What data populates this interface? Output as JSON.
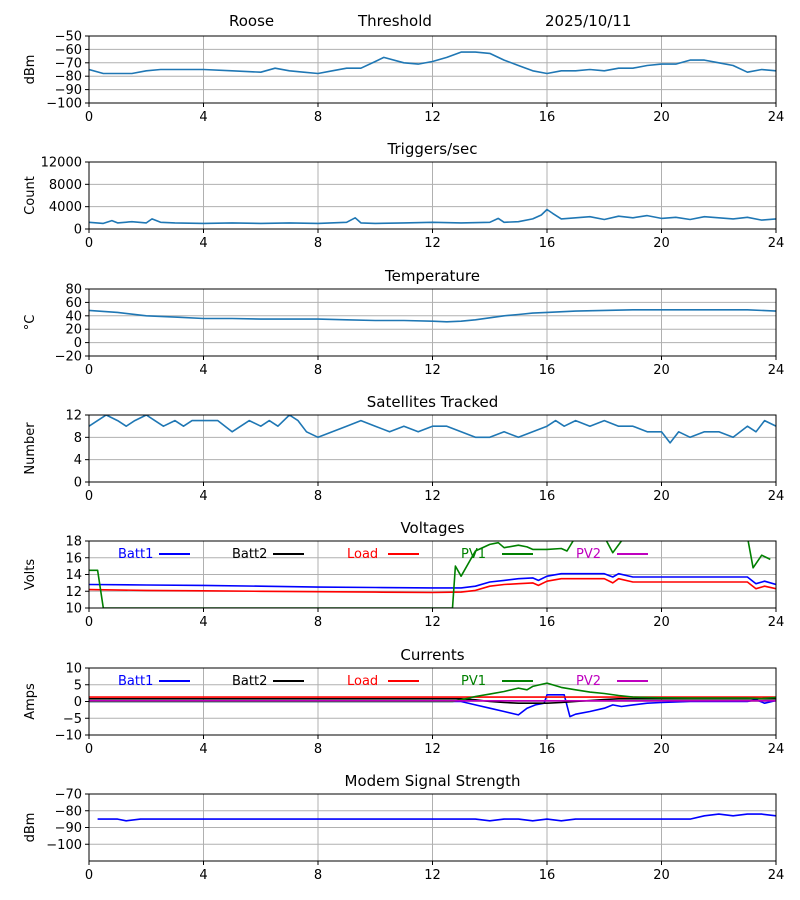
{
  "header": {
    "station": "Roose",
    "mode": "Threshold",
    "date": "2025/10/11"
  },
  "colors": {
    "series_default": "#1f77b4",
    "grid": "#b0b0b0",
    "batt1": "#0000ff",
    "batt2": "#000000",
    "load": "#ff0000",
    "pv1": "#008000",
    "pv2": "#bf00bf"
  },
  "chart_data": [
    {
      "id": "signal",
      "type": "line",
      "title": "",
      "ylabel": "dBm",
      "xlim": [
        0,
        24
      ],
      "ylim": [
        -100,
        -50
      ],
      "xticks": [
        0,
        4,
        8,
        12,
        16,
        20,
        24
      ],
      "yticks": [
        -50,
        -60,
        -70,
        -80,
        -90,
        -100
      ],
      "grid": true,
      "series": [
        {
          "color": "#1f77b4",
          "x": [
            0,
            0.5,
            1,
            1.5,
            2,
            2.5,
            3,
            4,
            5,
            6,
            6.5,
            7,
            7.5,
            8,
            8.5,
            9,
            9.5,
            10,
            10.3,
            11,
            11.5,
            12,
            12.5,
            13,
            13.5,
            14,
            14.5,
            15,
            15.5,
            16,
            16.5,
            17,
            17.5,
            18,
            18.5,
            19,
            19.5,
            20,
            20.5,
            21,
            21.5,
            22,
            22.5,
            23,
            23.5,
            24
          ],
          "y": [
            -75,
            -78,
            -78,
            -78,
            -76,
            -75,
            -75,
            -75,
            -76,
            -77,
            -74,
            -76,
            -77,
            -78,
            -76,
            -74,
            -74,
            -69,
            -66,
            -70,
            -71,
            -69,
            -66,
            -62,
            -62,
            -63,
            -68,
            -72,
            -76,
            -78,
            -76,
            -76,
            -75,
            -76,
            -74,
            -74,
            -72,
            -71,
            -71,
            -68,
            -68,
            -70,
            -72,
            -77,
            -75,
            -76
          ]
        }
      ]
    },
    {
      "id": "triggers",
      "type": "line",
      "title": "Triggers/sec",
      "ylabel": "Count",
      "xlim": [
        0,
        24
      ],
      "ylim": [
        0,
        12000
      ],
      "xticks": [
        0,
        4,
        8,
        12,
        16,
        20,
        24
      ],
      "yticks": [
        0,
        4000,
        8000,
        12000
      ],
      "grid": true,
      "series": [
        {
          "color": "#1f77b4",
          "x": [
            0,
            0.5,
            0.8,
            1,
            1.5,
            2,
            2.2,
            2.5,
            3,
            4,
            5,
            6,
            7,
            8,
            9,
            9.3,
            9.5,
            10,
            11,
            12,
            13,
            14,
            14.3,
            14.5,
            15,
            15.5,
            15.8,
            16,
            16.2,
            16.5,
            17,
            17.5,
            18,
            18.5,
            19,
            19.5,
            20,
            20.5,
            21,
            21.5,
            22,
            22.5,
            23,
            23.5,
            24
          ],
          "y": [
            1200,
            1000,
            1500,
            1100,
            1300,
            1100,
            1800,
            1200,
            1100,
            1000,
            1100,
            1000,
            1100,
            1000,
            1200,
            2000,
            1100,
            1000,
            1100,
            1200,
            1100,
            1200,
            1900,
            1200,
            1300,
            1800,
            2500,
            3500,
            2800,
            1800,
            2000,
            2200,
            1700,
            2300,
            2000,
            2400,
            1900,
            2100,
            1700,
            2200,
            2000,
            1800,
            2100,
            1600,
            1800
          ]
        }
      ]
    },
    {
      "id": "temperature",
      "type": "line",
      "title": "Temperature",
      "ylabel": "°C",
      "xlim": [
        0,
        24
      ],
      "ylim": [
        -20,
        80
      ],
      "xticks": [
        0,
        4,
        8,
        12,
        16,
        20,
        24
      ],
      "yticks": [
        80,
        60,
        40,
        20,
        0,
        -20
      ],
      "grid": true,
      "series": [
        {
          "color": "#1f77b4",
          "x": [
            0,
            1,
            2,
            3,
            4,
            5,
            6,
            7,
            8,
            9,
            10,
            11,
            12,
            12.5,
            13,
            13.5,
            14,
            14.5,
            15,
            15.5,
            16,
            17,
            18,
            19,
            20,
            21,
            22,
            23,
            24
          ],
          "y": [
            48,
            45,
            40,
            38,
            36,
            36,
            35,
            35,
            35,
            34,
            33,
            33,
            32,
            31,
            32,
            34,
            37,
            40,
            42,
            44,
            45,
            47,
            48,
            49,
            49,
            49,
            49,
            49,
            47
          ]
        }
      ]
    },
    {
      "id": "satellites",
      "type": "line",
      "title": "Satellites Tracked",
      "ylabel": "Number",
      "xlim": [
        0,
        24
      ],
      "ylim": [
        0,
        12
      ],
      "xticks": [
        0,
        4,
        8,
        12,
        16,
        20,
        24
      ],
      "yticks": [
        0,
        4,
        8,
        12
      ],
      "grid": true,
      "series": [
        {
          "color": "#1f77b4",
          "x": [
            0,
            0.3,
            0.6,
            1,
            1.3,
            1.6,
            2,
            2.3,
            2.6,
            3,
            3.3,
            3.6,
            4,
            4.5,
            5,
            5.3,
            5.6,
            6,
            6.3,
            6.6,
            7,
            7.3,
            7.6,
            8,
            8.5,
            9,
            9.5,
            10,
            10.5,
            11,
            11.5,
            12,
            12.5,
            13,
            13.5,
            14,
            14.5,
            15,
            15.5,
            16,
            16.3,
            16.6,
            17,
            17.5,
            18,
            18.5,
            19,
            19.5,
            20,
            20.3,
            20.6,
            21,
            21.5,
            22,
            22.5,
            23,
            23.3,
            23.6,
            24
          ],
          "y": [
            10,
            11,
            12,
            11,
            10,
            11,
            12,
            11,
            10,
            11,
            10,
            11,
            11,
            11,
            9,
            10,
            11,
            10,
            11,
            10,
            12,
            11,
            9,
            8,
            9,
            10,
            11,
            10,
            9,
            10,
            9,
            10,
            10,
            9,
            8,
            8,
            9,
            8,
            9,
            10,
            11,
            10,
            11,
            10,
            11,
            10,
            10,
            9,
            9,
            7,
            9,
            8,
            9,
            9,
            8,
            10,
            9,
            11,
            10
          ]
        }
      ]
    },
    {
      "id": "voltages",
      "type": "line",
      "title": "Voltages",
      "ylabel": "Volts",
      "xlim": [
        0,
        24
      ],
      "ylim": [
        10,
        18
      ],
      "xticks": [
        0,
        4,
        8,
        12,
        16,
        20,
        24
      ],
      "yticks": [
        10,
        12,
        14,
        16,
        18
      ],
      "grid": true,
      "legend": "top inline",
      "series": [
        {
          "name": "Batt1",
          "color": "#0000ff",
          "x": [
            0,
            2,
            4,
            6,
            8,
            10,
            12,
            13,
            13.5,
            14,
            14.5,
            15,
            15.5,
            15.7,
            16,
            16.5,
            17,
            17.5,
            18,
            18.3,
            18.5,
            19,
            20,
            21,
            22,
            23,
            23.3,
            23.6,
            24
          ],
          "y": [
            12.8,
            12.75,
            12.7,
            12.6,
            12.5,
            12.45,
            12.4,
            12.4,
            12.6,
            13.1,
            13.3,
            13.5,
            13.6,
            13.3,
            13.8,
            14.1,
            14.1,
            14.1,
            14.1,
            13.7,
            14.1,
            13.7,
            13.7,
            13.7,
            13.7,
            13.7,
            12.9,
            13.2,
            12.8
          ]
        },
        {
          "name": "Batt2",
          "color": "#000000",
          "x": [],
          "y": []
        },
        {
          "name": "Load",
          "color": "#ff0000",
          "x": [
            0,
            2,
            4,
            6,
            8,
            10,
            12,
            13,
            13.5,
            14,
            14.5,
            15,
            15.5,
            15.7,
            16,
            16.5,
            17,
            17.5,
            18,
            18.3,
            18.5,
            19,
            20,
            21,
            22,
            23,
            23.3,
            23.6,
            24
          ],
          "y": [
            12.2,
            12.1,
            12.05,
            12.0,
            11.95,
            11.9,
            11.85,
            11.9,
            12.1,
            12.6,
            12.8,
            12.9,
            13.0,
            12.7,
            13.2,
            13.5,
            13.5,
            13.5,
            13.5,
            13.0,
            13.5,
            13.1,
            13.1,
            13.1,
            13.1,
            13.1,
            12.3,
            12.6,
            12.3
          ]
        },
        {
          "name": "PV1",
          "color": "#008000",
          "x": [
            0,
            0.3,
            0.5,
            12.7,
            12.8,
            13.0,
            13.5,
            14.0,
            14.3,
            14.5,
            15.0,
            15.3,
            15.5,
            16.0,
            16.5,
            16.7,
            17.0,
            17.5,
            17.8,
            18.0,
            18.3,
            18.6,
            19.0,
            23.0,
            23.2,
            23.5,
            23.8
          ],
          "y": [
            14.5,
            14.5,
            10.0,
            10.0,
            15.0,
            13.8,
            16.8,
            17.6,
            17.8,
            17.2,
            17.5,
            17.3,
            17.0,
            17.0,
            17.1,
            16.8,
            18.5,
            18.5,
            18.5,
            18.5,
            16.6,
            18.0,
            18.5,
            18.5,
            14.8,
            16.3,
            15.8
          ]
        },
        {
          "name": "PV2",
          "color": "#bf00bf",
          "x": [],
          "y": []
        }
      ]
    },
    {
      "id": "currents",
      "type": "line",
      "title": "Currents",
      "ylabel": "Amps",
      "xlim": [
        0,
        24
      ],
      "ylim": [
        -10,
        10
      ],
      "xticks": [
        0,
        4,
        8,
        12,
        16,
        20,
        24
      ],
      "yticks": [
        10,
        5,
        0,
        -5,
        -10
      ],
      "grid": true,
      "legend": "top inline",
      "series": [
        {
          "name": "Batt1",
          "color": "#0000ff",
          "x": [
            0,
            2,
            4,
            6,
            8,
            10,
            12,
            13,
            13.5,
            14,
            14.5,
            15,
            15.3,
            15.6,
            15.9,
            16,
            16.3,
            16.6,
            16.8,
            17,
            17.5,
            18,
            18.3,
            18.6,
            19,
            19.5,
            20,
            21,
            22,
            23,
            23.3,
            23.6,
            24
          ],
          "y": [
            0,
            0,
            0,
            0,
            0,
            0,
            0,
            0,
            -1,
            -2,
            -3,
            -4,
            -2,
            -1,
            -0.5,
            2,
            2,
            2,
            -4.5,
            -3.8,
            -3,
            -2,
            -1,
            -1.5,
            -1,
            -0.5,
            -0.3,
            0,
            0,
            0,
            0.5,
            -0.5,
            0.3
          ]
        },
        {
          "name": "Batt2",
          "color": "#000000",
          "x": [
            0,
            2,
            4,
            6,
            8,
            10,
            12,
            13,
            13.5,
            14,
            14.5,
            15,
            15.5,
            16,
            16.5,
            17,
            17.5,
            18,
            18.5,
            19,
            19.5,
            20,
            21,
            22,
            23,
            24
          ],
          "y": [
            0.8,
            0.8,
            0.8,
            0.8,
            0.8,
            0.8,
            0.8,
            0.8,
            0.5,
            0,
            -0.3,
            -0.5,
            -0.5,
            -0.5,
            -0.3,
            0,
            0.3,
            0.6,
            0.8,
            0.8,
            0.8,
            0.8,
            0.8,
            0.8,
            0.8,
            0.8
          ]
        },
        {
          "name": "Load",
          "color": "#ff0000",
          "x": [
            0,
            4,
            8,
            12,
            16,
            20,
            24
          ],
          "y": [
            1.3,
            1.3,
            1.3,
            1.3,
            1.3,
            1.3,
            1.3
          ]
        },
        {
          "name": "PV1",
          "color": "#008000",
          "x": [
            0,
            12.7,
            13,
            13.5,
            14,
            14.5,
            15,
            15.3,
            15.5,
            16,
            16.5,
            17,
            17.5,
            18,
            18.5,
            19,
            20,
            21,
            22,
            23,
            23.5,
            24
          ],
          "y": [
            0,
            0,
            0.5,
            1.5,
            2.2,
            3,
            4,
            3.5,
            4.5,
            5.5,
            4.2,
            3.5,
            2.8,
            2.4,
            1.8,
            1.3,
            1.1,
            1.0,
            1.0,
            1.0,
            0.9,
            1.2
          ]
        },
        {
          "name": "PV2",
          "color": "#bf00bf",
          "x": [
            0,
            4,
            8,
            12,
            16,
            20,
            24
          ],
          "y": [
            0.2,
            0.2,
            0.2,
            0.2,
            0.2,
            0.2,
            0.2
          ]
        }
      ]
    },
    {
      "id": "modem",
      "type": "line",
      "title": "Modem Signal Strength",
      "ylabel": "dBm",
      "xlim": [
        0,
        24
      ],
      "ylim": [
        -110,
        -70
      ],
      "xticks": [
        0,
        4,
        8,
        12,
        16,
        20,
        24
      ],
      "yticks": [
        -70,
        -80,
        -90,
        -100
      ],
      "grid": true,
      "series": [
        {
          "color": "#0000ff",
          "x": [
            0.3,
            1,
            1.3,
            1.8,
            4,
            8,
            12,
            13.5,
            14,
            14.5,
            15,
            15.5,
            16,
            16.5,
            17,
            17.5,
            18,
            21,
            21.5,
            22,
            22.5,
            23,
            23.5,
            24
          ],
          "y": [
            -85,
            -85,
            -86,
            -85,
            -85,
            -85,
            -85,
            -85,
            -86,
            -85,
            -85,
            -86,
            -85,
            -86,
            -85,
            -85,
            -85,
            -85,
            -83,
            -82,
            -83,
            -82,
            -82,
            -83
          ]
        }
      ]
    }
  ]
}
